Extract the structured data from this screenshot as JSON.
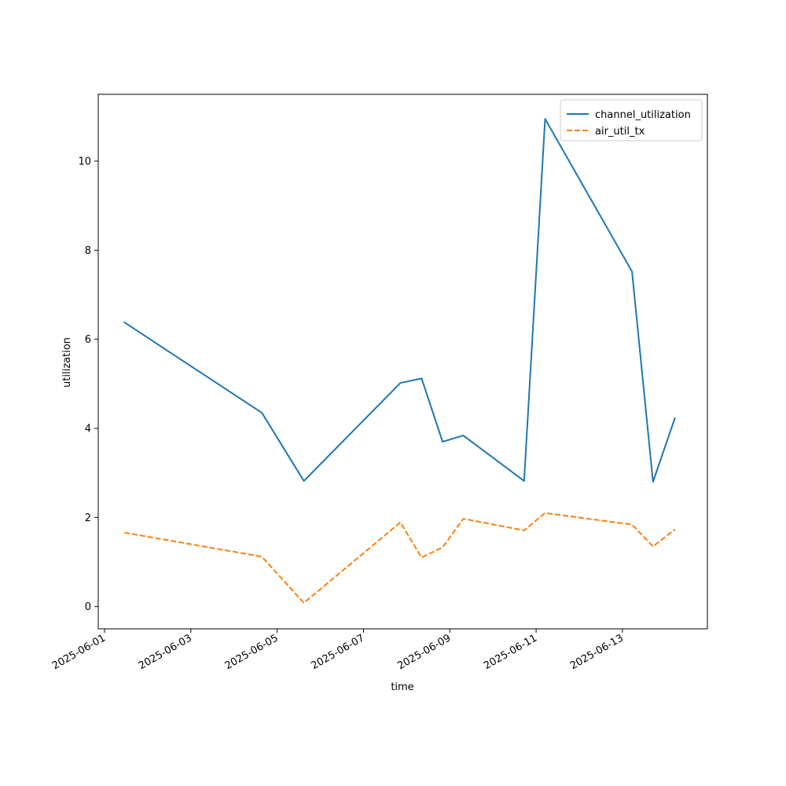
{
  "chart_data": {
    "type": "line",
    "title": "",
    "xlabel": "time",
    "ylabel": "utilization",
    "x_ticks": [
      "2025-06-01",
      "2025-06-03",
      "2025-06-05",
      "2025-06-07",
      "2025-06-09",
      "2025-06-11",
      "2025-06-13"
    ],
    "y_ticks": [
      "0",
      "2",
      "4",
      "6",
      "8",
      "10"
    ],
    "xlim": [
      "2025-05-31 20:30",
      "2025-06-14 23:15"
    ],
    "ylim": [
      -0.5,
      11.5
    ],
    "grid": false,
    "legend_position": "top-right",
    "series": [
      {
        "name": "channel_utilization",
        "color": "#1f77b4",
        "style": "solid",
        "points": [
          {
            "x": "2025-06-01 11:00",
            "y": 6.38
          },
          {
            "x": "2025-06-04 15:30",
            "y": 4.35
          },
          {
            "x": "2025-06-05 14:50",
            "y": 2.82
          },
          {
            "x": "2025-06-07 20:30",
            "y": 5.02
          },
          {
            "x": "2025-06-08 08:20",
            "y": 5.12
          },
          {
            "x": "2025-06-08 20:00",
            "y": 3.7
          },
          {
            "x": "2025-06-09 07:30",
            "y": 3.84
          },
          {
            "x": "2025-06-10 17:20",
            "y": 2.82
          },
          {
            "x": "2025-06-11 05:00",
            "y": 10.95
          },
          {
            "x": "2025-06-13 05:20",
            "y": 7.52
          },
          {
            "x": "2025-06-13 17:00",
            "y": 2.8
          },
          {
            "x": "2025-06-14 05:10",
            "y": 4.23
          }
        ]
      },
      {
        "name": "air_util_tx",
        "color": "#ff7f0e",
        "style": "dashed",
        "points": [
          {
            "x": "2025-06-01 11:00",
            "y": 1.66
          },
          {
            "x": "2025-06-04 15:30",
            "y": 1.12
          },
          {
            "x": "2025-06-05 14:50",
            "y": 0.08
          },
          {
            "x": "2025-06-07 20:30",
            "y": 1.89
          },
          {
            "x": "2025-06-08 08:20",
            "y": 1.1
          },
          {
            "x": "2025-06-08 20:00",
            "y": 1.33
          },
          {
            "x": "2025-06-09 07:30",
            "y": 1.97
          },
          {
            "x": "2025-06-10 17:20",
            "y": 1.71
          },
          {
            "x": "2025-06-11 05:00",
            "y": 2.1
          },
          {
            "x": "2025-06-13 05:20",
            "y": 1.84
          },
          {
            "x": "2025-06-13 17:00",
            "y": 1.35
          },
          {
            "x": "2025-06-14 05:10",
            "y": 1.73
          }
        ]
      }
    ]
  }
}
